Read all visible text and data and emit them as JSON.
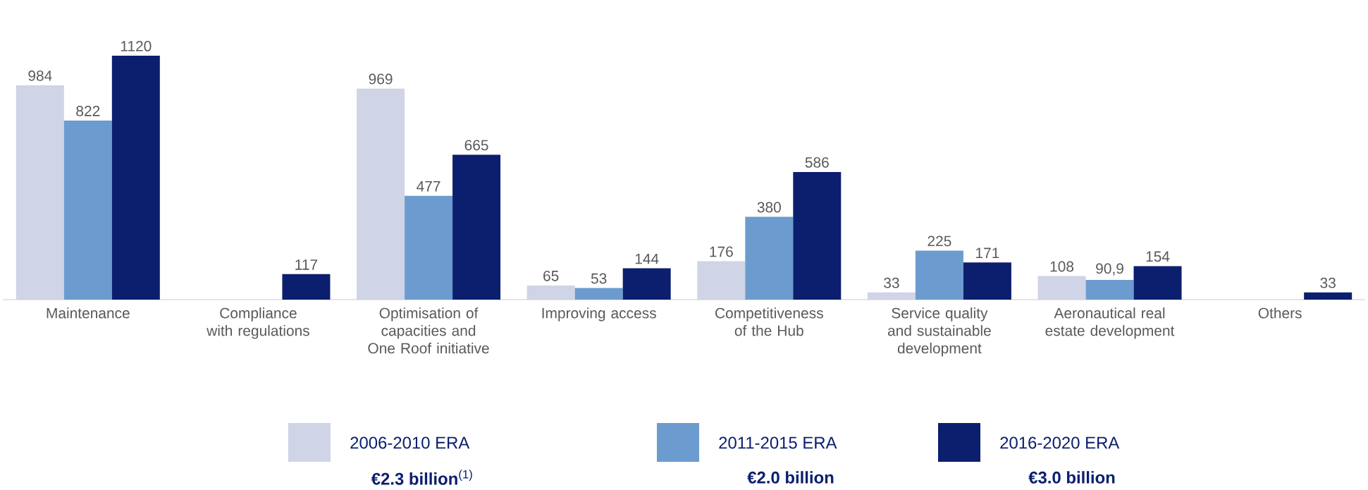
{
  "chart_data": {
    "type": "bar",
    "categories": [
      "Maintenance",
      "Compliance with regulations",
      "Optimisation of capacities and One Roof initiative",
      "Improving access",
      "Competitiveness of the Hub",
      "Service quality and sustainable development",
      "Aeronautical real estate development",
      "Others"
    ],
    "series": [
      {
        "name": "2006-2010 ERA",
        "color": "#cfd4e6",
        "values": [
          984,
          null,
          969,
          65,
          176,
          33,
          108,
          null
        ],
        "value_labels": [
          "984",
          null,
          "969",
          "65",
          "176",
          "33",
          "108",
          null
        ]
      },
      {
        "name": "2011-2015 ERA",
        "color": "#6c9bcf",
        "values": [
          822,
          null,
          477,
          53,
          380,
          225,
          90.9,
          null
        ],
        "value_labels": [
          "822",
          null,
          "477",
          "53",
          "380",
          "225",
          "90,9",
          null
        ]
      },
      {
        "name": "2016-2020 ERA",
        "color": "#0c1f6e",
        "values": [
          1120,
          117,
          665,
          144,
          586,
          171,
          154,
          33
        ],
        "value_labels": [
          "1120",
          "117",
          "665",
          "144",
          "586",
          "171",
          "154",
          "33"
        ]
      }
    ],
    "annotations": [
      "**€2.3 billion**$^{(1)}$",
      "**€2.0 billion**",
      "**€3.0 billion**"
    ],
    "legend": "bottom"
  }
}
